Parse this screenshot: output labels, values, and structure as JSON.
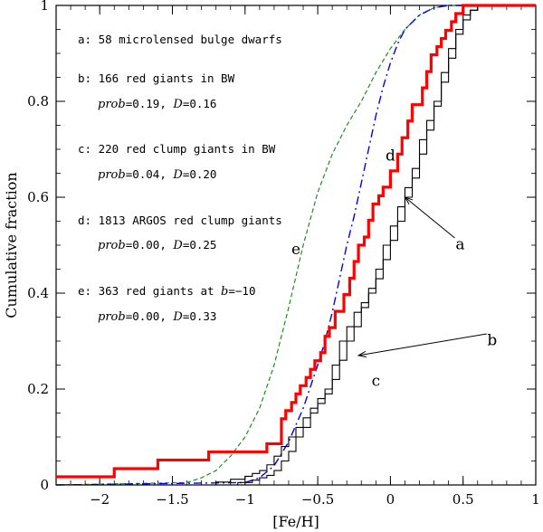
{
  "chart_data": {
    "type": "line",
    "xlabel": "[Fe/H]",
    "ylabel": "Cumulative fraction",
    "xlim": [
      -2.3,
      1.0
    ],
    "ylim": [
      0,
      1
    ],
    "x_ticks": [
      -2,
      -1.5,
      -1,
      -0.5,
      0,
      0.5,
      1
    ],
    "x_tick_labels": [
      "−2",
      "−1.5",
      "−1",
      "−0.5",
      "0",
      "0.5",
      "1"
    ],
    "y_ticks": [
      0,
      0.2,
      0.4,
      0.6,
      0.8,
      1
    ],
    "y_tick_labels": [
      "0",
      "0.2",
      "0.4",
      "0.6",
      "0.8",
      "1"
    ],
    "annotations": [
      {
        "text": "a: 58 microlensed bulge dwarfs"
      },
      {
        "text": "b: 166 red giants in BW",
        "stats": {
          "prob_label": "prob",
          "prob": "0.19",
          "d_label": "D",
          "d": "0.16"
        }
      },
      {
        "text": "c: 220 red clump giants in BW",
        "stats": {
          "prob_label": "prob",
          "prob": "0.04",
          "d_label": "D",
          "d": "0.20"
        }
      },
      {
        "text": "d: 1813 ARGOS red clump giants",
        "stats": {
          "prob_label": "prob",
          "prob": "0.00",
          "d_label": "D",
          "d": "0.25"
        }
      },
      {
        "text_prefix": "e: 363 red giants at ",
        "b_label": "b",
        "b_value": "−10",
        "stats": {
          "prob_label": "prob",
          "prob": "0.00",
          "d_label": "D",
          "d": "0.33"
        }
      }
    ],
    "series": [
      {
        "name": "a",
        "color": "#ff0000",
        "style": "step-thick",
        "x": [
          -2.3,
          -1.9,
          -1.9,
          -1.6,
          -1.6,
          -1.25,
          -1.25,
          -0.85,
          -0.85,
          -0.75,
          -0.75,
          -0.72,
          -0.72,
          -0.68,
          -0.68,
          -0.65,
          -0.65,
          -0.62,
          -0.62,
          -0.58,
          -0.58,
          -0.55,
          -0.55,
          -0.52,
          -0.52,
          -0.48,
          -0.48,
          -0.45,
          -0.45,
          -0.42,
          -0.42,
          -0.38,
          -0.38,
          -0.32,
          -0.32,
          -0.28,
          -0.28,
          -0.25,
          -0.25,
          -0.22,
          -0.22,
          -0.18,
          -0.18,
          -0.15,
          -0.15,
          -0.12,
          -0.12,
          -0.08,
          -0.08,
          -0.05,
          -0.05,
          0.0,
          0.0,
          0.05,
          0.05,
          0.08,
          0.08,
          0.12,
          0.12,
          0.15,
          0.15,
          0.22,
          0.22,
          0.25,
          0.25,
          0.28,
          0.28,
          0.32,
          0.32,
          0.35,
          0.35,
          0.38,
          0.38,
          0.42,
          0.42,
          0.45,
          0.45,
          0.5,
          0.5,
          0.55,
          0.55,
          1.0
        ],
        "y": [
          0.017,
          0.017,
          0.034,
          0.034,
          0.052,
          0.052,
          0.069,
          0.069,
          0.086,
          0.086,
          0.138,
          0.138,
          0.155,
          0.155,
          0.172,
          0.172,
          0.19,
          0.19,
          0.207,
          0.207,
          0.224,
          0.224,
          0.241,
          0.241,
          0.259,
          0.259,
          0.276,
          0.276,
          0.31,
          0.31,
          0.328,
          0.328,
          0.362,
          0.362,
          0.397,
          0.397,
          0.431,
          0.431,
          0.466,
          0.466,
          0.5,
          0.5,
          0.517,
          0.517,
          0.552,
          0.552,
          0.586,
          0.586,
          0.603,
          0.603,
          0.621,
          0.621,
          0.655,
          0.655,
          0.69,
          0.69,
          0.724,
          0.724,
          0.759,
          0.759,
          0.793,
          0.793,
          0.828,
          0.828,
          0.862,
          0.862,
          0.897,
          0.897,
          0.914,
          0.914,
          0.931,
          0.931,
          0.948,
          0.948,
          0.966,
          0.966,
          0.983,
          0.983,
          1.0,
          1.0,
          1.0,
          1.0
        ]
      },
      {
        "name": "b",
        "color": "#000000",
        "style": "step-thin",
        "x": [
          -2.3,
          -1.2,
          -1.1,
          -1.0,
          -0.95,
          -0.9,
          -0.85,
          -0.8,
          -0.75,
          -0.7,
          -0.65,
          -0.6,
          -0.55,
          -0.5,
          -0.45,
          -0.4,
          -0.35,
          -0.3,
          -0.25,
          -0.2,
          -0.15,
          -0.1,
          -0.05,
          0.0,
          0.05,
          0.1,
          0.15,
          0.2,
          0.25,
          0.3,
          0.35,
          0.4,
          0.45,
          0.5,
          0.55,
          0.6,
          0.65,
          1.0
        ],
        "y": [
          0.0,
          0.006,
          0.012,
          0.018,
          0.024,
          0.03,
          0.042,
          0.06,
          0.08,
          0.1,
          0.12,
          0.14,
          0.16,
          0.18,
          0.2,
          0.25,
          0.3,
          0.33,
          0.36,
          0.38,
          0.41,
          0.45,
          0.5,
          0.54,
          0.58,
          0.62,
          0.66,
          0.72,
          0.76,
          0.8,
          0.86,
          0.91,
          0.95,
          0.98,
          0.99,
          1.0,
          1.0,
          1.0
        ]
      },
      {
        "name": "c",
        "color": "#000000",
        "style": "step-thin",
        "x": [
          -2.3,
          -1.05,
          -0.95,
          -0.9,
          -0.85,
          -0.8,
          -0.75,
          -0.7,
          -0.65,
          -0.6,
          -0.55,
          -0.5,
          -0.45,
          -0.4,
          -0.35,
          -0.3,
          -0.25,
          -0.2,
          -0.15,
          -0.1,
          -0.05,
          0.0,
          0.05,
          0.1,
          0.15,
          0.2,
          0.25,
          0.3,
          0.35,
          0.4,
          0.45,
          0.5,
          0.55,
          0.6,
          1.0
        ],
        "y": [
          0.0,
          0.005,
          0.01,
          0.015,
          0.02,
          0.03,
          0.05,
          0.07,
          0.1,
          0.12,
          0.15,
          0.17,
          0.19,
          0.22,
          0.26,
          0.3,
          0.33,
          0.37,
          0.4,
          0.43,
          0.47,
          0.51,
          0.55,
          0.6,
          0.64,
          0.69,
          0.74,
          0.79,
          0.84,
          0.89,
          0.94,
          0.97,
          0.99,
          1.0,
          1.0
        ]
      },
      {
        "name": "d",
        "color": "#0000ee",
        "style": "dash-dot",
        "x": [
          -2.3,
          -1.0,
          -0.9,
          -0.8,
          -0.7,
          -0.6,
          -0.5,
          -0.45,
          -0.4,
          -0.35,
          -0.3,
          -0.25,
          -0.2,
          -0.15,
          -0.1,
          -0.05,
          0.0,
          0.05,
          0.1,
          0.2,
          0.3,
          0.4,
          0.5,
          1.0
        ],
        "y": [
          0.0,
          0.005,
          0.015,
          0.04,
          0.09,
          0.16,
          0.25,
          0.3,
          0.36,
          0.43,
          0.5,
          0.56,
          0.63,
          0.7,
          0.77,
          0.83,
          0.88,
          0.92,
          0.95,
          0.98,
          0.995,
          1.0,
          1.0,
          1.0
        ]
      },
      {
        "name": "e",
        "color": "#228b22",
        "style": "dashed",
        "x": [
          -2.3,
          -1.4,
          -1.3,
          -1.2,
          -1.1,
          -1.0,
          -0.9,
          -0.8,
          -0.7,
          -0.6,
          -0.5,
          -0.4,
          -0.3,
          -0.2,
          -0.1,
          0.0,
          0.1,
          0.2,
          0.3,
          0.4,
          1.0
        ],
        "y": [
          0.0,
          0.005,
          0.015,
          0.03,
          0.06,
          0.1,
          0.16,
          0.25,
          0.37,
          0.5,
          0.61,
          0.69,
          0.75,
          0.8,
          0.86,
          0.91,
          0.95,
          0.98,
          0.995,
          1.0,
          1.0
        ]
      }
    ],
    "curve_labels": [
      {
        "text": "a",
        "x": 0.48,
        "y": 0.5,
        "arrow_to": [
          0.1,
          0.6
        ]
      },
      {
        "text": "b",
        "x": 0.7,
        "y": 0.3,
        "arrow_to": [
          -0.22,
          0.27
        ]
      },
      {
        "text": "c",
        "x": -0.1,
        "y": 0.215
      },
      {
        "text": "d",
        "x": 0.0,
        "y": 0.685
      },
      {
        "text": "e",
        "x": -0.65,
        "y": 0.49
      }
    ]
  }
}
